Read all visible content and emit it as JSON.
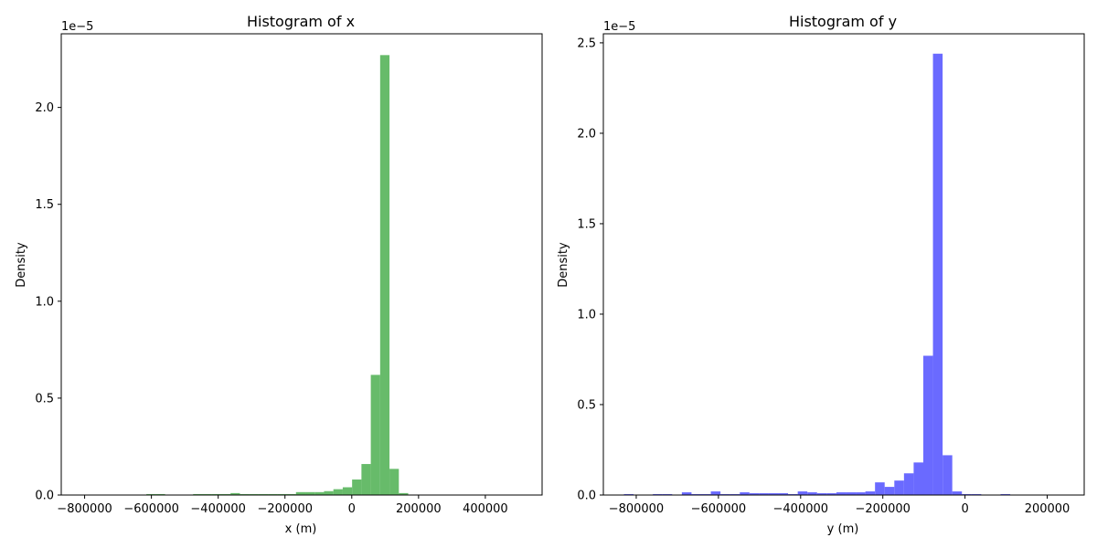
{
  "chart_data": [
    {
      "type": "bar",
      "title": "Histogram of x",
      "xlabel": "x (m)",
      "ylabel": "Density",
      "y_offset_label": "1e−5",
      "color": "#4caf50",
      "opacity": 0.85,
      "xlim": [
        -870000,
        570000
      ],
      "ylim": [
        0,
        2.38
      ],
      "x_ticks": [
        -800000,
        -600000,
        -400000,
        -200000,
        0,
        200000,
        400000
      ],
      "x_tick_labels": [
        "−800000",
        "−600000",
        "−400000",
        "−200000",
        "0",
        "200000",
        "400000"
      ],
      "y_ticks": [
        0,
        0.5,
        1.0,
        1.5,
        2.0
      ],
      "y_tick_labels": [
        "0.0",
        "0.5",
        "1.0",
        "1.5",
        "2.0"
      ],
      "bin_start": -615000,
      "bin_width": 28000,
      "values": [
        0.005,
        0.005,
        0,
        0,
        0,
        0.005,
        0.005,
        0.005,
        0.005,
        0.01,
        0.005,
        0.005,
        0.005,
        0.005,
        0.005,
        0.005,
        0.015,
        0.015,
        0.015,
        0.02,
        0.03,
        0.04,
        0.08,
        0.16,
        0.62,
        2.27,
        0.135,
        0.01
      ]
    },
    {
      "type": "bar",
      "title": "Histogram of y",
      "xlabel": "y (m)",
      "ylabel": "Density",
      "y_offset_label": "1e−5",
      "color": "#6a6aff",
      "opacity": 1.0,
      "xlim": [
        -880000,
        290000
      ],
      "ylim": [
        0,
        2.55
      ],
      "x_ticks": [
        -800000,
        -600000,
        -400000,
        -200000,
        0,
        200000
      ],
      "x_tick_labels": [
        "−800000",
        "−600000",
        "−400000",
        "−200000",
        "0",
        "200000"
      ],
      "y_ticks": [
        0,
        0.5,
        1.0,
        1.5,
        2.0,
        2.5
      ],
      "y_tick_labels": [
        "0.0",
        "0.5",
        "1.0",
        "1.5",
        "2.0",
        "2.5"
      ],
      "bin_start": -830000,
      "bin_width": 23500,
      "values": [
        0.005,
        0,
        0,
        0.005,
        0.005,
        0,
        0.015,
        0.005,
        0.005,
        0.02,
        0.005,
        0.005,
        0.015,
        0.01,
        0.01,
        0.01,
        0.01,
        0.005,
        0.02,
        0.015,
        0.01,
        0.01,
        0.015,
        0.015,
        0.015,
        0.02,
        0.07,
        0.045,
        0.08,
        0.12,
        0.18,
        0.77,
        2.44,
        0.22,
        0.02,
        0.005,
        0.005,
        0,
        0,
        0.005
      ]
    }
  ]
}
